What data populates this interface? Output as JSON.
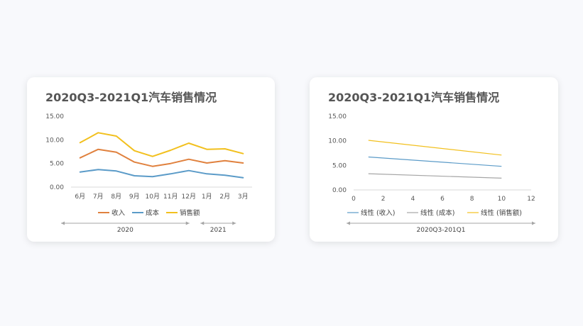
{
  "chart_data": [
    {
      "type": "line",
      "title": "2020Q3-2021Q1汽车销售情况",
      "categories": [
        "6月",
        "7月",
        "8月",
        "9月",
        "10月",
        "11月",
        "12月",
        "1月",
        "2月",
        "3月"
      ],
      "category_groups": [
        {
          "label": "2020",
          "from": 0,
          "to": 6
        },
        {
          "label": "2021",
          "from": 7,
          "to": 9
        }
      ],
      "y_ticks": [
        "0.00",
        "5.00",
        "10.00",
        "15.00"
      ],
      "ylim": [
        0,
        15
      ],
      "legend": "bottom",
      "series": [
        {
          "name": "收入",
          "color": "#e0813e",
          "values": [
            6.2,
            8.0,
            7.4,
            5.3,
            4.4,
            5.0,
            5.9,
            5.1,
            5.6,
            5.1
          ]
        },
        {
          "name": "成本",
          "color": "#5b9bc8",
          "values": [
            3.2,
            3.7,
            3.4,
            2.4,
            2.2,
            2.8,
            3.5,
            2.8,
            2.5,
            2.0
          ]
        },
        {
          "name": "销售额",
          "color": "#f2c01e",
          "values": [
            9.4,
            11.5,
            10.8,
            7.7,
            6.5,
            7.8,
            9.3,
            8.0,
            8.1,
            7.1
          ]
        }
      ]
    },
    {
      "type": "line",
      "title": "2020Q3-2021Q1汽车销售情况",
      "x_ticks": [
        0,
        2,
        4,
        6,
        8,
        10,
        12
      ],
      "xlim": [
        0,
        12
      ],
      "y_ticks": [
        "0.00",
        "5.00",
        "10.00",
        "15.00"
      ],
      "ylim": [
        0,
        15
      ],
      "group_label": "2020Q3-201Q1",
      "legend": "bottom",
      "series": [
        {
          "name": "线性 (收入)",
          "color": "#5b9bc8",
          "x": [
            1,
            10
          ],
          "values": [
            6.7,
            4.8
          ]
        },
        {
          "name": "线性 (成本)",
          "color": "#a6a6a6",
          "x": [
            1,
            10
          ],
          "values": [
            3.3,
            2.4
          ]
        },
        {
          "name": "线性 (销售额)",
          "color": "#f2c01e",
          "x": [
            1,
            10
          ],
          "values": [
            10.1,
            7.1
          ]
        }
      ]
    }
  ]
}
